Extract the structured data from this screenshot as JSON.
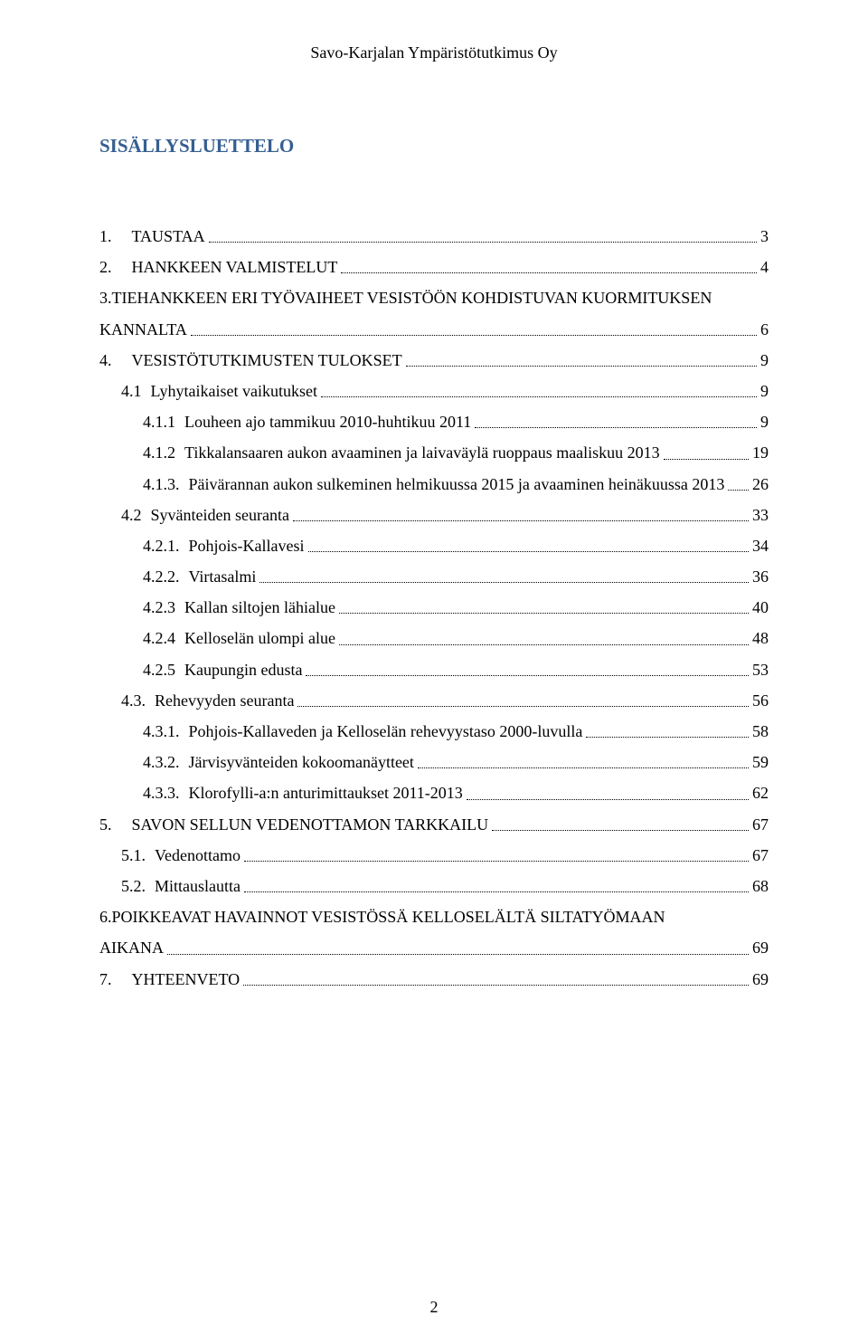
{
  "header": {
    "company": "Savo-Karjalan Ympäristötutkimus Oy"
  },
  "toc_title": "SISÄLLYSLUETTELO",
  "toc": [
    {
      "indent": 0,
      "num": "1.",
      "label": "TAUSTAA",
      "page": "3",
      "numClass": "sp"
    },
    {
      "indent": 0,
      "num": "2.",
      "label": "HANKKEEN VALMISTELUT",
      "page": "4",
      "numClass": "sp"
    },
    {
      "indent": 0,
      "num": "3.",
      "label_line1": "TIEHANKKEEN ERI TYÖVAIHEET VESISTÖÖN KOHDISTUVAN KUORMITUKSEN",
      "label_line2": "KANNALTA",
      "page": "6",
      "numClass": "sp",
      "wrap": true
    },
    {
      "indent": 0,
      "num": "4.",
      "label": "VESISTÖTUTKIMUSTEN TULOKSET",
      "page": "9",
      "numClass": "sp"
    },
    {
      "indent": 1,
      "num": "4.1",
      "label": "Lyhytaikaiset vaikutukset",
      "page": "9",
      "numClass": "sp2"
    },
    {
      "indent": 2,
      "num": "4.1.1",
      "label": "Louheen ajo tammikuu 2010-huhtikuu 2011",
      "page": "9",
      "numClass": "sp2"
    },
    {
      "indent": 2,
      "num": "4.1.2",
      "label": "Tikkalansaaren aukon avaaminen ja laivaväylä ruoppaus maaliskuu 2013",
      "page": "19",
      "numClass": "sp2"
    },
    {
      "indent": 2,
      "num": "4.1.3.",
      "label": "Päivärannan aukon sulkeminen helmikuussa 2015 ja avaaminen heinäkuussa 2013",
      "page": "26",
      "numClass": "sp2"
    },
    {
      "indent": 1,
      "num": "4.2",
      "label": "Syvänteiden seuranta",
      "page": "33",
      "numClass": "sp2"
    },
    {
      "indent": 2,
      "num": "4.2.1.",
      "label": "Pohjois-Kallavesi",
      "page": "34",
      "numClass": "sp2"
    },
    {
      "indent": 2,
      "num": "4.2.2.",
      "label": "Virtasalmi",
      "page": "36",
      "numClass": "sp2"
    },
    {
      "indent": 2,
      "num": "4.2.3",
      "label": "Kallan siltojen lähialue",
      "page": "40",
      "numClass": "sp2"
    },
    {
      "indent": 2,
      "num": "4.2.4",
      "label": "Kelloselän ulompi alue",
      "page": "48",
      "numClass": "sp2"
    },
    {
      "indent": 2,
      "num": "4.2.5",
      "label": "Kaupungin edusta",
      "page": "53",
      "numClass": "sp2"
    },
    {
      "indent": 1,
      "num": "4.3.",
      "label": "Rehevyyden seuranta",
      "page": "56",
      "numClass": "sp2"
    },
    {
      "indent": 2,
      "num": "4.3.1.",
      "label": "Pohjois-Kallaveden ja Kelloselän rehevyystaso 2000-luvulla",
      "page": "58",
      "numClass": "sp2"
    },
    {
      "indent": 2,
      "num": "4.3.2.",
      "label": "Järvisyvänteiden kokoomanäytteet",
      "page": "59",
      "numClass": "sp2"
    },
    {
      "indent": 2,
      "num": "4.3.3.",
      "label": "Klorofylli-a:n anturimittaukset 2011-2013",
      "page": "62",
      "numClass": "sp2"
    },
    {
      "indent": 0,
      "num": "5.",
      "label": "SAVON SELLUN VEDENOTTAMON TARKKAILU",
      "page": "67",
      "numClass": "sp"
    },
    {
      "indent": 1,
      "num": "5.1.",
      "label": "Vedenottamo",
      "page": "67",
      "numClass": "sp2"
    },
    {
      "indent": 1,
      "num": "5.2.",
      "label": "Mittauslautta",
      "page": "68",
      "numClass": "sp2"
    },
    {
      "indent": 0,
      "num": "6.",
      "label_line1": "POIKKEAVAT HAVAINNOT VESISTÖSSÄ KELLOSELÄLTÄ SILTATYÖMAAN",
      "label_line2": "AIKANA",
      "page": "69",
      "numClass": "sp",
      "wrap": true
    },
    {
      "indent": 0,
      "num": "7.",
      "label": "YHTEENVETO",
      "page": "69",
      "numClass": "sp"
    }
  ],
  "footer": {
    "page_number": "2"
  },
  "colors": {
    "title": "#365f91",
    "text": "#000000",
    "background": "#ffffff"
  }
}
